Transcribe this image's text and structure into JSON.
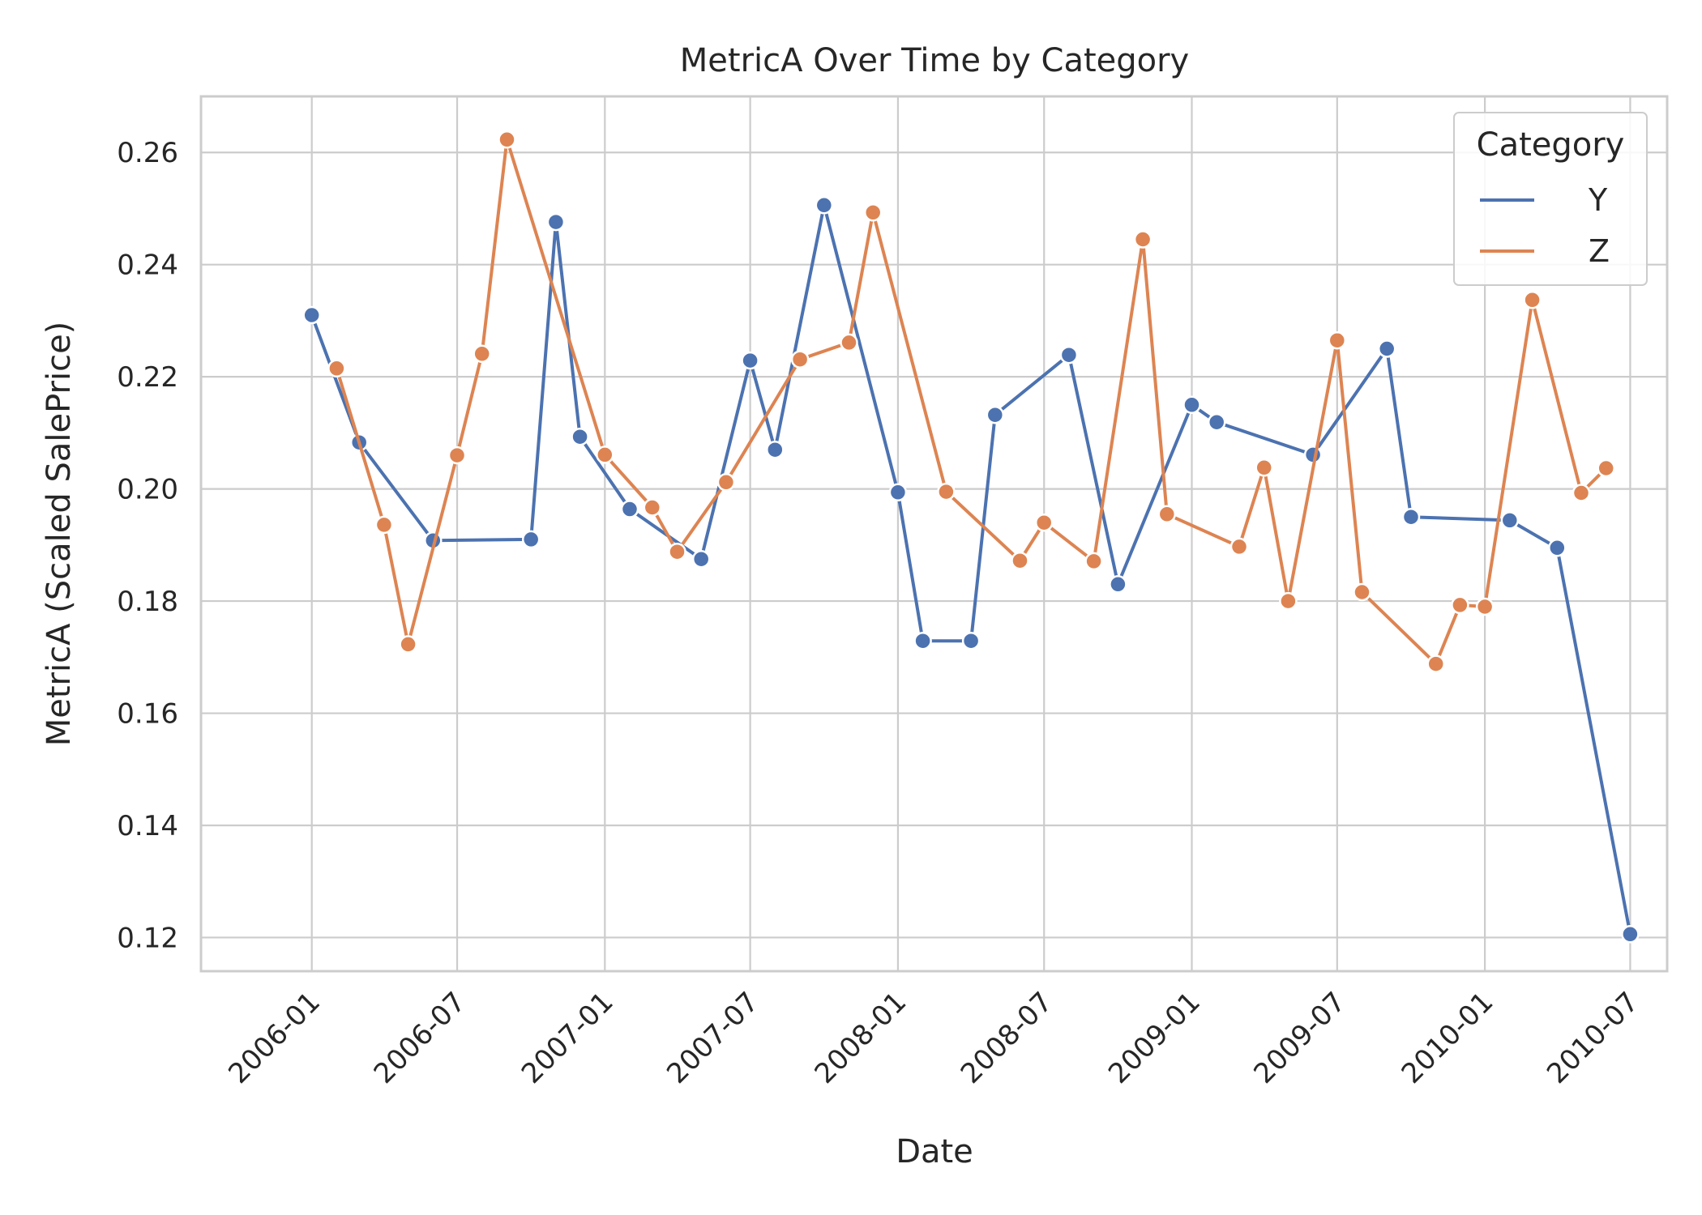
{
  "chart_data": {
    "type": "line",
    "title": "MetricA Over Time by Category",
    "xlabel": "Date",
    "ylabel": "MetricA (Scaled SalePrice)",
    "xlim": [
      "2005-08-16",
      "2010-08-16"
    ],
    "ylim": [
      0.114,
      0.27
    ],
    "x_ticks": [
      "2006-01",
      "2006-07",
      "2007-01",
      "2007-07",
      "2008-01",
      "2008-07",
      "2009-01",
      "2009-07",
      "2010-01",
      "2010-07"
    ],
    "y_ticks": [
      "0.12",
      "0.14",
      "0.16",
      "0.18",
      "0.20",
      "0.22",
      "0.24",
      "0.26"
    ],
    "grid": true,
    "legend": {
      "title": "Category",
      "placement": "top-right"
    },
    "series": [
      {
        "name": "Y",
        "color": "#4c72b0",
        "points": [
          {
            "x": "2006-01-01",
            "y": 0.231
          },
          {
            "x": "2006-03-01",
            "y": 0.2083
          },
          {
            "x": "2006-06-01",
            "y": 0.1908
          },
          {
            "x": "2006-10-01",
            "y": 0.191
          },
          {
            "x": "2006-11-01",
            "y": 0.2476
          },
          {
            "x": "2006-12-01",
            "y": 0.2093
          },
          {
            "x": "2007-02-01",
            "y": 0.1964
          },
          {
            "x": "2007-05-01",
            "y": 0.1875
          },
          {
            "x": "2007-07-01",
            "y": 0.2229
          },
          {
            "x": "2007-08-01",
            "y": 0.207
          },
          {
            "x": "2007-10-01",
            "y": 0.2506
          },
          {
            "x": "2008-01-01",
            "y": 0.1994
          },
          {
            "x": "2008-02-01",
            "y": 0.1729
          },
          {
            "x": "2008-04-01",
            "y": 0.1729
          },
          {
            "x": "2008-05-01",
            "y": 0.2132
          },
          {
            "x": "2008-08-01",
            "y": 0.2239
          },
          {
            "x": "2008-10-01",
            "y": 0.183
          },
          {
            "x": "2009-01-01",
            "y": 0.215
          },
          {
            "x": "2009-02-01",
            "y": 0.2119
          },
          {
            "x": "2009-06-01",
            "y": 0.2061
          },
          {
            "x": "2009-09-01",
            "y": 0.225
          },
          {
            "x": "2009-10-01",
            "y": 0.195
          },
          {
            "x": "2010-02-01",
            "y": 0.1944
          },
          {
            "x": "2010-04-01",
            "y": 0.1895
          },
          {
            "x": "2010-07-01",
            "y": 0.1206
          }
        ]
      },
      {
        "name": "Z",
        "color": "#dd8452",
        "points": [
          {
            "x": "2006-02-01",
            "y": 0.2215
          },
          {
            "x": "2006-04-01",
            "y": 0.1936
          },
          {
            "x": "2006-05-01",
            "y": 0.1723
          },
          {
            "x": "2006-07-01",
            "y": 0.206
          },
          {
            "x": "2006-08-01",
            "y": 0.2241
          },
          {
            "x": "2006-09-01",
            "y": 0.2623
          },
          {
            "x": "2007-01-01",
            "y": 0.2061
          },
          {
            "x": "2007-03-01",
            "y": 0.1967
          },
          {
            "x": "2007-04-01",
            "y": 0.1888
          },
          {
            "x": "2007-06-01",
            "y": 0.2012
          },
          {
            "x": "2007-09-01",
            "y": 0.2231
          },
          {
            "x": "2007-11-01",
            "y": 0.2261
          },
          {
            "x": "2007-12-01",
            "y": 0.2493
          },
          {
            "x": "2008-03-01",
            "y": 0.1995
          },
          {
            "x": "2008-06-01",
            "y": 0.1872
          },
          {
            "x": "2008-07-01",
            "y": 0.194
          },
          {
            "x": "2008-09-01",
            "y": 0.1871
          },
          {
            "x": "2008-11-01",
            "y": 0.2445
          },
          {
            "x": "2008-12-01",
            "y": 0.1955
          },
          {
            "x": "2009-03-01",
            "y": 0.1897
          },
          {
            "x": "2009-04-01",
            "y": 0.2038
          },
          {
            "x": "2009-05-01",
            "y": 0.18
          },
          {
            "x": "2009-07-01",
            "y": 0.2265
          },
          {
            "x": "2009-08-01",
            "y": 0.1816
          },
          {
            "x": "2009-11-01",
            "y": 0.1688
          },
          {
            "x": "2009-12-01",
            "y": 0.1793
          },
          {
            "x": "2010-01-01",
            "y": 0.179
          },
          {
            "x": "2010-03-01",
            "y": 0.2337
          },
          {
            "x": "2010-05-01",
            "y": 0.1993
          },
          {
            "x": "2010-06-01",
            "y": 0.2037
          }
        ]
      }
    ]
  }
}
